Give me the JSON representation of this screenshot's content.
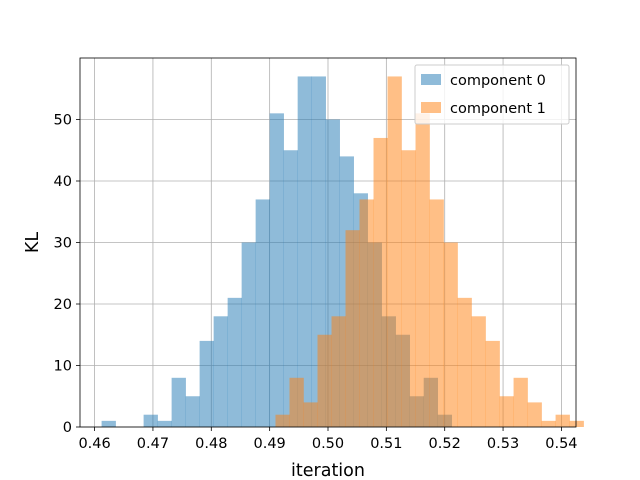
{
  "chart_data": {
    "type": "bar",
    "title": "",
    "xlabel": "iteration",
    "ylabel": "KL",
    "xlim": [
      0.4575,
      0.5425
    ],
    "ylim": [
      0,
      60
    ],
    "xticks": [
      0.46,
      0.47,
      0.48,
      0.49,
      0.5,
      0.51,
      0.52,
      0.53,
      0.54
    ],
    "xtick_labels": [
      "0.46",
      "0.47",
      "0.48",
      "0.49",
      "0.50",
      "0.51",
      "0.52",
      "0.53",
      "0.54"
    ],
    "yticks": [
      0,
      10,
      20,
      30,
      40,
      50
    ],
    "ytick_labels": [
      "0",
      "10",
      "20",
      "30",
      "40",
      "50"
    ],
    "grid": true,
    "legend_position": "top-right",
    "series": [
      {
        "name": "component 0",
        "color": "#1f77b4",
        "opacity": 0.5,
        "bins": [
          {
            "x0": 0.4612,
            "x1": 0.4636,
            "count": 1
          },
          {
            "x0": 0.4684,
            "x1": 0.4708,
            "count": 2
          },
          {
            "x0": 0.4708,
            "x1": 0.4732,
            "count": 1
          },
          {
            "x0": 0.4732,
            "x1": 0.4756,
            "count": 8
          },
          {
            "x0": 0.4756,
            "x1": 0.478,
            "count": 5
          },
          {
            "x0": 0.478,
            "x1": 0.4804,
            "count": 14
          },
          {
            "x0": 0.4804,
            "x1": 0.4828,
            "count": 18
          },
          {
            "x0": 0.4828,
            "x1": 0.4852,
            "count": 21
          },
          {
            "x0": 0.4852,
            "x1": 0.4876,
            "count": 30
          },
          {
            "x0": 0.4876,
            "x1": 0.49,
            "count": 37
          },
          {
            "x0": 0.49,
            "x1": 0.4924,
            "count": 51
          },
          {
            "x0": 0.4924,
            "x1": 0.4948,
            "count": 45
          },
          {
            "x0": 0.4948,
            "x1": 0.4972,
            "count": 57
          },
          {
            "x0": 0.4972,
            "x1": 0.4996,
            "count": 57
          },
          {
            "x0": 0.4996,
            "x1": 0.502,
            "count": 50
          },
          {
            "x0": 0.502,
            "x1": 0.5044,
            "count": 44
          },
          {
            "x0": 0.5044,
            "x1": 0.5068,
            "count": 38
          },
          {
            "x0": 0.5068,
            "x1": 0.5092,
            "count": 30
          },
          {
            "x0": 0.5092,
            "x1": 0.5116,
            "count": 18
          },
          {
            "x0": 0.5116,
            "x1": 0.514,
            "count": 15
          },
          {
            "x0": 0.514,
            "x1": 0.5164,
            "count": 5
          },
          {
            "x0": 0.5164,
            "x1": 0.5188,
            "count": 8
          },
          {
            "x0": 0.5188,
            "x1": 0.5212,
            "count": 2
          }
        ]
      },
      {
        "name": "component 1",
        "color": "#ff7f0e",
        "opacity": 0.5,
        "bins": [
          {
            "x0": 0.491,
            "x1": 0.4934,
            "count": 2
          },
          {
            "x0": 0.4934,
            "x1": 0.4958,
            "count": 8
          },
          {
            "x0": 0.4958,
            "x1": 0.4982,
            "count": 4
          },
          {
            "x0": 0.4982,
            "x1": 0.5006,
            "count": 15
          },
          {
            "x0": 0.5006,
            "x1": 0.503,
            "count": 18
          },
          {
            "x0": 0.503,
            "x1": 0.5054,
            "count": 32
          },
          {
            "x0": 0.5054,
            "x1": 0.5078,
            "count": 37
          },
          {
            "x0": 0.5078,
            "x1": 0.5102,
            "count": 47
          },
          {
            "x0": 0.5102,
            "x1": 0.5126,
            "count": 57
          },
          {
            "x0": 0.5126,
            "x1": 0.515,
            "count": 45
          },
          {
            "x0": 0.515,
            "x1": 0.5174,
            "count": 51
          },
          {
            "x0": 0.5174,
            "x1": 0.5198,
            "count": 37
          },
          {
            "x0": 0.5198,
            "x1": 0.5222,
            "count": 30
          },
          {
            "x0": 0.5222,
            "x1": 0.5246,
            "count": 21
          },
          {
            "x0": 0.5246,
            "x1": 0.527,
            "count": 18
          },
          {
            "x0": 0.527,
            "x1": 0.5294,
            "count": 14
          },
          {
            "x0": 0.5294,
            "x1": 0.5318,
            "count": 5
          },
          {
            "x0": 0.5318,
            "x1": 0.5342,
            "count": 8
          },
          {
            "x0": 0.5342,
            "x1": 0.5366,
            "count": 4
          },
          {
            "x0": 0.5366,
            "x1": 0.539,
            "count": 1
          },
          {
            "x0": 0.539,
            "x1": 0.5414,
            "count": 2
          },
          {
            "x0": 0.5414,
            "x1": 0.5438,
            "count": 1
          }
        ]
      }
    ]
  }
}
